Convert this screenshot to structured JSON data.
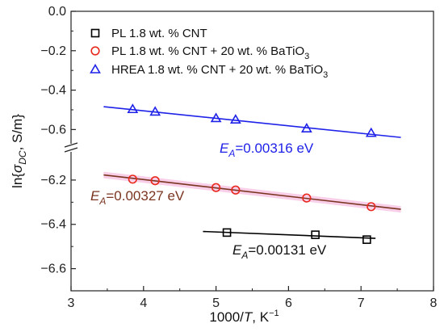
{
  "chart_data": {
    "type": "scatter",
    "xlabel": {
      "main": "1000/",
      "var": "T",
      "unit": ", K",
      "sup": "−1"
    },
    "ylabel": {
      "prefix": "ln{",
      "sym": "σ",
      "sub": "DC",
      "suffix": ", S/m}"
    },
    "xlim": [
      3,
      8
    ],
    "xticks": [
      "3",
      "4",
      "5",
      "6",
      "7",
      "8"
    ],
    "broken_y_axis": true,
    "y_upper": {
      "ylim": [
        -0.66,
        0.0
      ],
      "ticks": [
        "0.0",
        "−0.2",
        "−0.4",
        "−0.6"
      ],
      "tick_values": [
        0.0,
        -0.2,
        -0.4,
        -0.6
      ]
    },
    "y_lower": {
      "ylim": [
        -6.7,
        -6.08
      ],
      "ticks": [
        "−6.2",
        "−6.4",
        "−6.6"
      ],
      "tick_values": [
        -6.2,
        -6.4,
        -6.6
      ]
    },
    "series": [
      {
        "name": "PL 1.8 wt. % CNT",
        "legend_parts": [
          "PL 1.8 wt. % CNT",
          ""
        ],
        "marker": "square",
        "color": "#000000",
        "fit_color": "#000000",
        "panel": "lower",
        "x": [
          5.15,
          6.37,
          7.08
        ],
        "y": [
          -6.437,
          -6.447,
          -6.469
        ],
        "fit": {
          "x": [
            4.82,
            7.2
          ],
          "y": [
            -6.432,
            -6.463
          ]
        },
        "annotation": {
          "sym": "E",
          "sub": "A",
          "text": "=0.00131 eV",
          "color": "#111111"
        }
      },
      {
        "name": "PL 1.8 wt. % CNT + 20 wt. % BaTiO3",
        "legend_parts": [
          "PL 1.8 wt. % CNT + 20 wt. % BaTiO",
          "3"
        ],
        "marker": "circle",
        "color": "#e8281c",
        "fit_color": "#7a3520",
        "band_color": "#f2a6d6",
        "panel": "lower",
        "x": [
          3.85,
          4.16,
          5.0,
          5.27,
          6.25,
          7.14
        ],
        "y": [
          -6.196,
          -6.203,
          -6.234,
          -6.245,
          -6.281,
          -6.32
        ],
        "fit": {
          "x": [
            3.45,
            7.55
          ],
          "y": [
            -6.177,
            -6.332
          ]
        },
        "annotation": {
          "sym": "E",
          "sub": "A",
          "text": "=0.00327 eV",
          "color": "#7a3520"
        }
      },
      {
        "name": "HREA 1.8 wt. % CNT + 20 wt. % BaTiO3",
        "legend_parts": [
          "HREA 1.8 wt. % CNT + 20 wt. % BaTiO",
          "3"
        ],
        "marker": "triangle",
        "color": "#1f22e8",
        "fit_color": "#1f22e8",
        "panel": "upper",
        "x": [
          3.85,
          4.16,
          5.0,
          5.27,
          6.25,
          7.14
        ],
        "y": [
          -0.497,
          -0.51,
          -0.543,
          -0.55,
          -0.595,
          -0.618
        ],
        "fit": {
          "x": [
            3.45,
            7.55
          ],
          "y": [
            -0.484,
            -0.64
          ]
        },
        "annotation": {
          "sym": "E",
          "sub": "A",
          "text": "=0.00316 eV",
          "color": "#1f22e8"
        }
      }
    ]
  }
}
